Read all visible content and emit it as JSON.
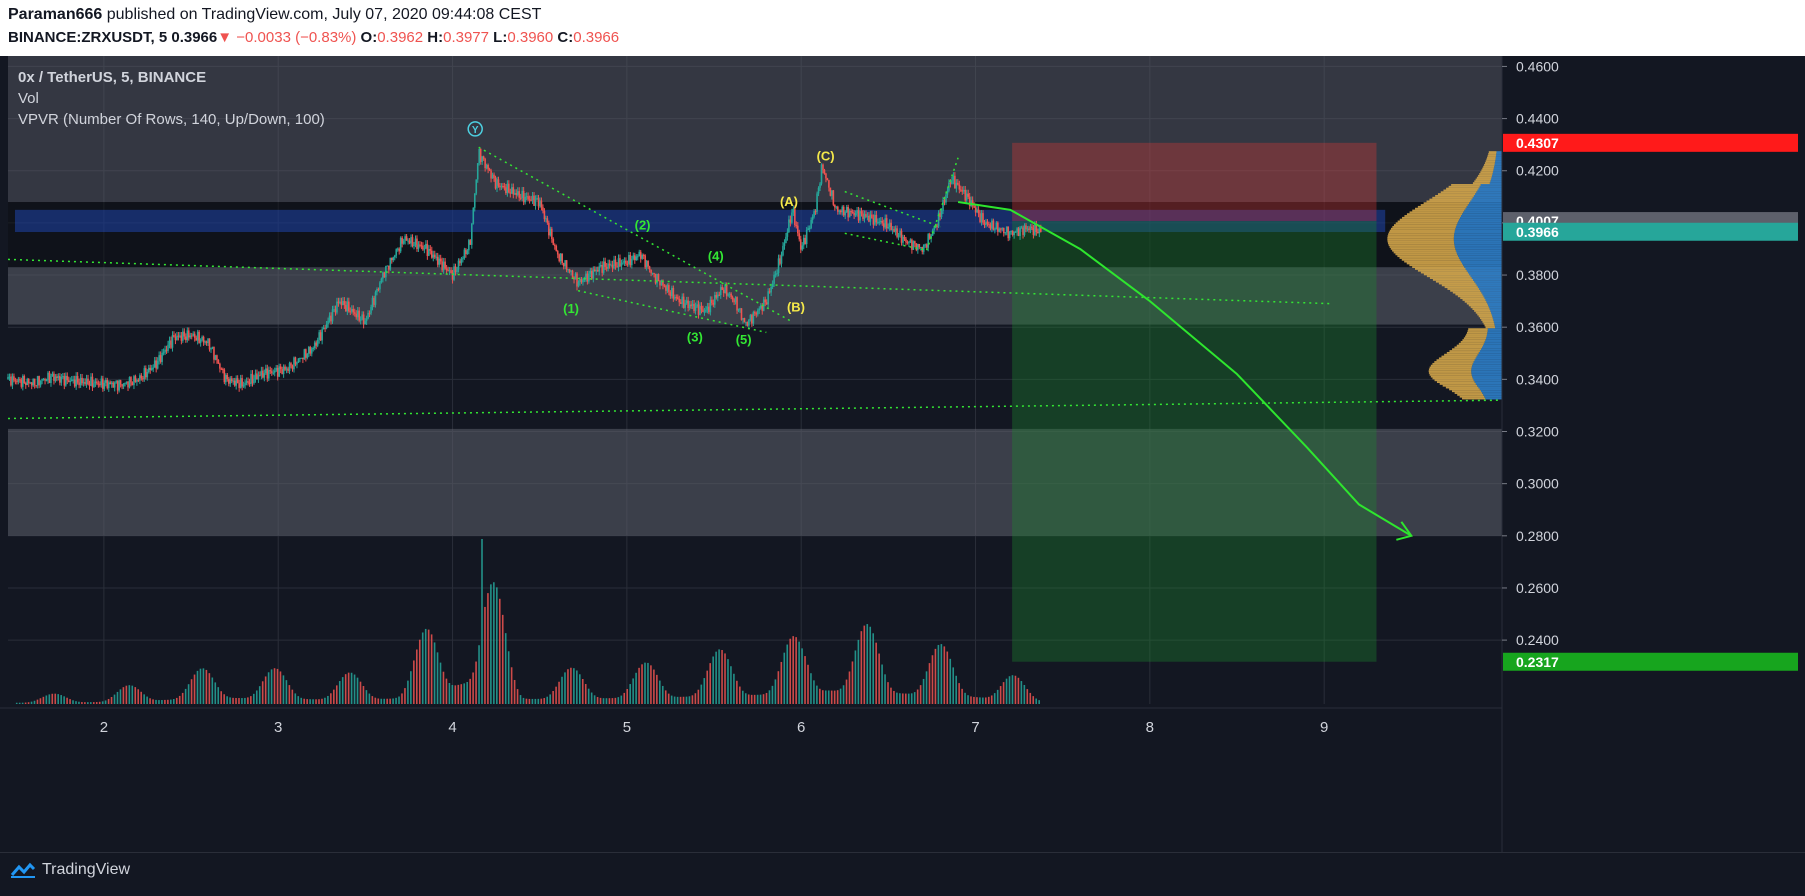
{
  "header": {
    "publisher": "Paraman666",
    "published_text": "published on TradingView.com, July 07, 2020 09:44:08 CEST",
    "symbol": "BINANCE:ZRXUSDT, 5",
    "last": "0.3966",
    "change_arrow": "▼",
    "change": "−0.0033 (−0.83%)",
    "o_label": "O:",
    "o_value": "0.3962",
    "h_label": "H:",
    "h_value": "0.3977",
    "l_label": "L:",
    "l_value": "0.3960",
    "c_label": "C:",
    "c_value": "0.3966"
  },
  "legend": {
    "title": "0x / TetherUS, 5, BINANCE",
    "vol": "Vol",
    "vpvr": "VPVR (Number Of Rows, 140, Up/Down, 100)"
  },
  "footer": {
    "brand": "TradingView"
  },
  "colors": {
    "background": "#131722",
    "up": "#26a69a",
    "down": "#ef5350",
    "wave_green": "#33e633",
    "wave_yellow": "#f5e94a",
    "stop_red": "#e53935",
    "target_green": "#1e8a2e",
    "vpvr_up": "#2f7fc9",
    "vpvr_down": "#d4a64a"
  },
  "chart_data": {
    "type": "candlestick",
    "x_ticks": [
      "2",
      "3",
      "4",
      "5",
      "6",
      "7",
      "8",
      "9"
    ],
    "x_range": [
      1.45,
      10.02
    ],
    "y_range": [
      0.2155,
      0.464
    ],
    "y_ticks": [
      "0.4600",
      "0.4400",
      "0.4200",
      "0.4000",
      "0.3800",
      "0.3600",
      "0.3400",
      "0.3200",
      "0.3000",
      "0.2800",
      "0.2600",
      "0.2400"
    ],
    "price_labels": [
      {
        "text": "0.4307",
        "y": 0.4307,
        "color": "#ff1a1a",
        "text_color": "#ffffff"
      },
      {
        "text": "0.4007",
        "y": 0.4007,
        "color": "#5d606b",
        "text_color": "#ffffff"
      },
      {
        "text": "0.3966",
        "y": 0.3966,
        "color": "#26a69a",
        "text_color": "#ffffff"
      },
      {
        "text": "0.2317",
        "y": 0.2317,
        "color": "#17a51e",
        "text_color": "#ffffff"
      }
    ],
    "price_path": [
      [
        1.45,
        0.34
      ],
      [
        1.6,
        0.3385
      ],
      [
        1.7,
        0.341
      ],
      [
        1.8,
        0.3395
      ],
      [
        1.95,
        0.3385
      ],
      [
        2.1,
        0.338
      ],
      [
        2.2,
        0.34
      ],
      [
        2.3,
        0.346
      ],
      [
        2.4,
        0.356
      ],
      [
        2.5,
        0.357
      ],
      [
        2.6,
        0.354
      ],
      [
        2.7,
        0.34
      ],
      [
        2.8,
        0.338
      ],
      [
        2.9,
        0.342
      ],
      [
        3.05,
        0.344
      ],
      [
        3.2,
        0.352
      ],
      [
        3.35,
        0.37
      ],
      [
        3.5,
        0.362
      ],
      [
        3.6,
        0.38
      ],
      [
        3.72,
        0.394
      ],
      [
        3.85,
        0.39
      ],
      [
        4.0,
        0.38
      ],
      [
        4.1,
        0.392
      ],
      [
        4.15,
        0.427
      ],
      [
        4.25,
        0.415
      ],
      [
        4.4,
        0.41
      ],
      [
        4.5,
        0.408
      ],
      [
        4.6,
        0.388
      ],
      [
        4.72,
        0.377
      ],
      [
        4.85,
        0.383
      ],
      [
        5.0,
        0.385
      ],
      [
        5.08,
        0.388
      ],
      [
        5.15,
        0.38
      ],
      [
        5.3,
        0.37
      ],
      [
        5.45,
        0.366
      ],
      [
        5.55,
        0.375
      ],
      [
        5.62,
        0.37
      ],
      [
        5.68,
        0.361
      ],
      [
        5.8,
        0.37
      ],
      [
        5.88,
        0.386
      ],
      [
        5.95,
        0.405
      ],
      [
        6.0,
        0.39
      ],
      [
        6.08,
        0.405
      ],
      [
        6.12,
        0.422
      ],
      [
        6.2,
        0.405
      ],
      [
        6.35,
        0.403
      ],
      [
        6.5,
        0.399
      ],
      [
        6.6,
        0.393
      ],
      [
        6.7,
        0.39
      ],
      [
        6.78,
        0.4
      ],
      [
        6.86,
        0.417
      ],
      [
        6.95,
        0.41
      ],
      [
        7.05,
        0.4
      ],
      [
        7.2,
        0.396
      ],
      [
        7.3,
        0.398
      ],
      [
        7.38,
        0.3966
      ]
    ],
    "volume_path": [
      [
        1.5,
        0.05
      ],
      [
        2.0,
        0.08
      ],
      [
        2.7,
        0.25
      ],
      [
        3.3,
        0.18
      ],
      [
        3.7,
        0.22
      ],
      [
        4.17,
        1.0
      ],
      [
        4.4,
        0.2
      ],
      [
        5.1,
        0.25
      ],
      [
        6.0,
        0.42
      ],
      [
        6.15,
        0.55
      ],
      [
        6.85,
        0.35
      ],
      [
        7.38,
        0.1
      ]
    ],
    "zones": [
      {
        "y1": 0.408,
        "y2": 0.383,
        "fill": "#0b0d12",
        "opacity": 0.5
      },
      {
        "y1": 0.383,
        "y2": 0.361,
        "fill": "#5d606b",
        "opacity": 0.55
      },
      {
        "y1": 0.321,
        "y2": 0.28,
        "fill": "#5d606b",
        "opacity": 0.55
      },
      {
        "y1": 0.464,
        "y2": 0.408,
        "fill": "#5d606b",
        "opacity": 0.45
      }
    ],
    "blue_band": {
      "x1": 1.49,
      "x2": 9.35,
      "y1": 0.405,
      "y2": 0.3965
    },
    "trade_box": {
      "x1": 7.21,
      "x2": 9.3,
      "entry": 0.4007,
      "stop": 0.4307,
      "target": 0.2317
    },
    "wave_labels": [
      {
        "text": "Y",
        "x": 4.13,
        "y": 0.4345,
        "color": "#4dd0e1",
        "circled": true
      },
      {
        "text": "(C)",
        "x": 6.14,
        "y": 0.424,
        "color": "#f5e94a"
      },
      {
        "text": "(A)",
        "x": 5.93,
        "y": 0.4065,
        "color": "#f5e94a"
      },
      {
        "text": "(B)",
        "x": 5.97,
        "y": 0.366,
        "color": "#f5e94a"
      },
      {
        "text": "(1)",
        "x": 4.68,
        "y": 0.3655,
        "color": "#33e633"
      },
      {
        "text": "(2)",
        "x": 5.09,
        "y": 0.3975,
        "color": "#33e633"
      },
      {
        "text": "(3)",
        "x": 5.39,
        "y": 0.3545,
        "color": "#33e633"
      },
      {
        "text": "(4)",
        "x": 5.51,
        "y": 0.3855,
        "color": "#33e633"
      },
      {
        "text": "(5)",
        "x": 5.67,
        "y": 0.3535,
        "color": "#33e633"
      }
    ],
    "trend_lines": [
      [
        [
          4.15,
          0.429
        ],
        [
          5.95,
          0.362
        ]
      ],
      [
        [
          4.72,
          0.374
        ],
        [
          5.8,
          0.358
        ]
      ],
      [
        [
          6.25,
          0.412
        ],
        [
          6.8,
          0.3985
        ]
      ],
      [
        [
          6.25,
          0.396
        ],
        [
          6.72,
          0.3895
        ]
      ],
      [
        [
          6.72,
          0.3895
        ],
        [
          6.9,
          0.425
        ]
      ],
      [
        [
          1.45,
          0.386
        ],
        [
          9.05,
          0.369
        ]
      ],
      [
        [
          1.45,
          0.325
        ],
        [
          10.02,
          0.332
        ]
      ]
    ],
    "projection_path": [
      [
        6.9,
        0.408
      ],
      [
        7.2,
        0.405
      ],
      [
        7.6,
        0.39
      ],
      [
        8.0,
        0.37
      ],
      [
        8.5,
        0.342
      ],
      [
        8.9,
        0.314
      ],
      [
        9.2,
        0.292
      ],
      [
        9.5,
        0.28
      ]
    ]
  }
}
